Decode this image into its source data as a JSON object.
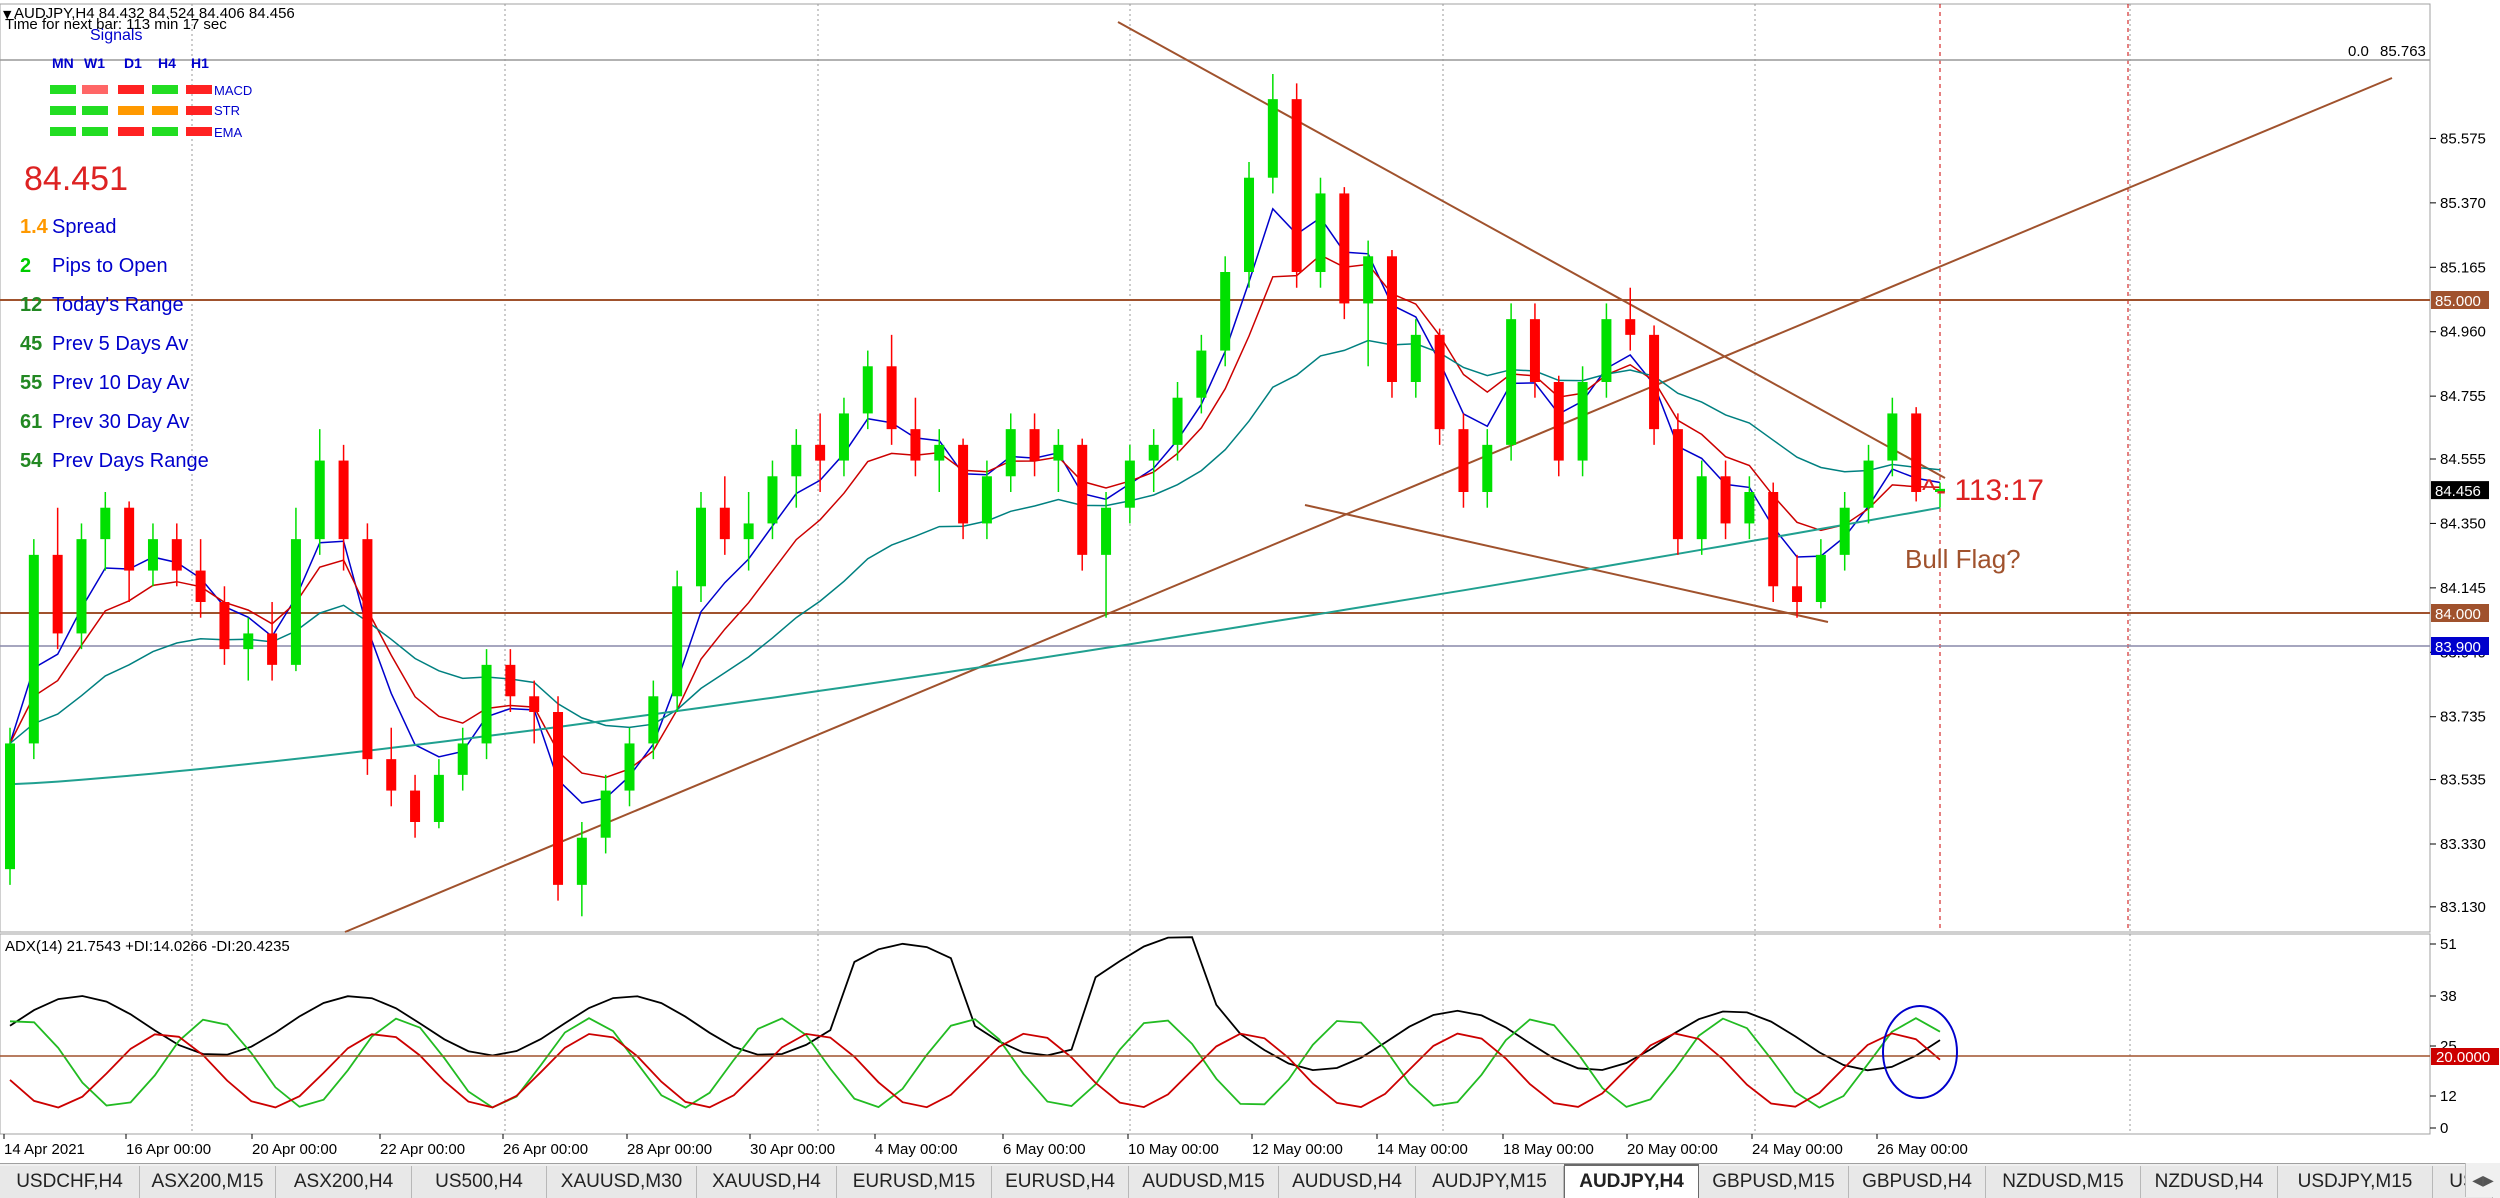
{
  "header": {
    "symbol_line": "AUDJPY,H4  84.432 84.524 84.406 84.456",
    "timer": "Time for next bar: 113 min 17 sec"
  },
  "signals": {
    "title": "Signals",
    "timeframes": [
      "MN",
      "W1",
      "D1",
      "H4",
      "H1"
    ],
    "rows": [
      {
        "label": "MACD",
        "colors": [
          "#22dd22",
          "#ff6666",
          "#ff2222",
          "#22dd22",
          "#ff2222"
        ]
      },
      {
        "label": "STR",
        "colors": [
          "#22dd22",
          "#22dd22",
          "#ff9900",
          "#ff9900",
          "#ff2222"
        ]
      },
      {
        "label": "EMA",
        "colors": [
          "#22dd22",
          "#22dd22",
          "#ff2222",
          "#22dd22",
          "#ff2222"
        ]
      }
    ]
  },
  "info_panel": {
    "price": "84.451",
    "rows": [
      {
        "value": "1.4",
        "label": "Spread",
        "value_color": "#ff9900"
      },
      {
        "value": "2",
        "label": "Pips to Open",
        "value_color": "#00cc00"
      },
      {
        "value": "12",
        "label": "Today's Range",
        "value_color": "#228822"
      },
      {
        "value": "45",
        "label": "Prev 5 Days Av",
        "value_color": "#228822"
      },
      {
        "value": "55",
        "label": "Prev 10 Day Av",
        "value_color": "#228822"
      },
      {
        "value": "61",
        "label": "Prev 30 Day Av",
        "value_color": "#228822"
      },
      {
        "value": "54",
        "label": "Prev Days Range",
        "value_color": "#228822"
      }
    ]
  },
  "price_axis": {
    "ticks": [
      "85.575",
      "85.370",
      "85.165",
      "84.960",
      "84.755",
      "84.555",
      "84.350",
      "84.145",
      "83.940",
      "83.735",
      "83.535",
      "83.330",
      "83.130"
    ],
    "fib_label": "0.0",
    "fib_value": "85.763",
    "level_labels": [
      {
        "text": "85.000",
        "bg": "#a0522d",
        "fg": "#ffffff"
      },
      {
        "text": "84.456",
        "bg": "#000000",
        "fg": "#ffffff"
      },
      {
        "text": "84.000",
        "bg": "#a0522d",
        "fg": "#ffffff"
      },
      {
        "text": "83.900",
        "bg": "#0000cc",
        "fg": "#ffffff"
      }
    ]
  },
  "annotations": {
    "timer_mark": "^- 113:17",
    "pattern": "Bull Flag?"
  },
  "adx": {
    "label": "ADX(14) 21.7543 +DI:14.0266 -DI:20.4235",
    "ticks": [
      "51",
      "38",
      "25",
      "12",
      "0"
    ],
    "level_label": "20.0000"
  },
  "time_axis": {
    "labels": [
      "14 Apr 2021",
      "16 Apr 00:00",
      "20 Apr 00:00",
      "22 Apr 00:00",
      "26 Apr 00:00",
      "28 Apr 00:00",
      "30 Apr 00:00",
      "4 May 00:00",
      "6 May 00:00",
      "10 May 00:00",
      "12 May 00:00",
      "14 May 00:00",
      "18 May 00:00",
      "20 May 00:00",
      "24 May 00:00",
      "26 May 00:00"
    ]
  },
  "tabs": [
    {
      "label": "USDCHF,H4",
      "active": false
    },
    {
      "label": "ASX200,M15",
      "active": false
    },
    {
      "label": "ASX200,H4",
      "active": false
    },
    {
      "label": "US500,H4",
      "active": false
    },
    {
      "label": "XAUUSD,M30",
      "active": false
    },
    {
      "label": "XAUUSD,H4",
      "active": false
    },
    {
      "label": "EURUSD,M15",
      "active": false
    },
    {
      "label": "EURUSD,H4",
      "active": false
    },
    {
      "label": "AUDUSD,M15",
      "active": false
    },
    {
      "label": "AUDUSD,H4",
      "active": false
    },
    {
      "label": "AUDJPY,M15",
      "active": false
    },
    {
      "label": "AUDJPY,H4",
      "active": true
    },
    {
      "label": "GBPUSD,M15",
      "active": false
    },
    {
      "label": "GBPUSD,H4",
      "active": false
    },
    {
      "label": "NZDUSD,M15",
      "active": false
    },
    {
      "label": "NZDUSD,H4",
      "active": false
    },
    {
      "label": "USDJPY,M15",
      "active": false
    },
    {
      "label": "US",
      "active": false
    }
  ],
  "colors": {
    "bull": "#00e000",
    "bear": "#ff0000",
    "level": "#a0522d",
    "trend": "#a0522d",
    "blue_level": "#8888aa",
    "ma_fast": "#0000cc",
    "ma_mid": "#cc0000",
    "ma_slow": "#008080",
    "ma_long": "#20a090",
    "adx_main": "#000000",
    "adx_plus": "#22bb22",
    "adx_minus": "#cc0000"
  },
  "chart_data": {
    "type": "candlestick",
    "y_range": [
      83.05,
      85.85
    ],
    "candles": [
      [
        83.25,
        83.7,
        83.2,
        83.65
      ],
      [
        83.65,
        84.3,
        83.6,
        84.25
      ],
      [
        84.25,
        84.4,
        83.95,
        84.0
      ],
      [
        84.0,
        84.35,
        83.95,
        84.3
      ],
      [
        84.3,
        84.45,
        84.2,
        84.4
      ],
      [
        84.4,
        84.42,
        84.1,
        84.2
      ],
      [
        84.2,
        84.35,
        84.15,
        84.3
      ],
      [
        84.3,
        84.35,
        84.15,
        84.2
      ],
      [
        84.2,
        84.3,
        84.05,
        84.1
      ],
      [
        84.1,
        84.15,
        83.9,
        83.95
      ],
      [
        83.95,
        84.05,
        83.85,
        84.0
      ],
      [
        84.0,
        84.1,
        83.85,
        83.9
      ],
      [
        83.9,
        84.4,
        83.88,
        84.3
      ],
      [
        84.3,
        84.65,
        84.25,
        84.55
      ],
      [
        84.55,
        84.6,
        84.2,
        84.3
      ],
      [
        84.3,
        84.35,
        83.55,
        83.6
      ],
      [
        83.6,
        83.7,
        83.45,
        83.5
      ],
      [
        83.5,
        83.55,
        83.35,
        83.4
      ],
      [
        83.4,
        83.6,
        83.38,
        83.55
      ],
      [
        83.55,
        83.7,
        83.5,
        83.65
      ],
      [
        83.65,
        83.95,
        83.6,
        83.9
      ],
      [
        83.9,
        83.95,
        83.75,
        83.8
      ],
      [
        83.8,
        83.85,
        83.65,
        83.75
      ],
      [
        83.75,
        83.8,
        83.15,
        83.2
      ],
      [
        83.2,
        83.4,
        83.1,
        83.35
      ],
      [
        83.35,
        83.55,
        83.3,
        83.5
      ],
      [
        83.5,
        83.7,
        83.45,
        83.65
      ],
      [
        83.65,
        83.85,
        83.6,
        83.8
      ],
      [
        83.8,
        84.2,
        83.75,
        84.15
      ],
      [
        84.15,
        84.45,
        84.1,
        84.4
      ],
      [
        84.4,
        84.5,
        84.25,
        84.3
      ],
      [
        84.3,
        84.45,
        84.2,
        84.35
      ],
      [
        84.35,
        84.55,
        84.3,
        84.5
      ],
      [
        84.5,
        84.65,
        84.4,
        84.6
      ],
      [
        84.6,
        84.7,
        84.45,
        84.55
      ],
      [
        84.55,
        84.75,
        84.5,
        84.7
      ],
      [
        84.7,
        84.9,
        84.65,
        84.85
      ],
      [
        84.85,
        84.95,
        84.6,
        84.65
      ],
      [
        84.65,
        84.75,
        84.5,
        84.55
      ],
      [
        84.55,
        84.65,
        84.45,
        84.6
      ],
      [
        84.6,
        84.62,
        84.3,
        84.35
      ],
      [
        84.35,
        84.55,
        84.3,
        84.5
      ],
      [
        84.5,
        84.7,
        84.45,
        84.65
      ],
      [
        84.65,
        84.7,
        84.5,
        84.55
      ],
      [
        84.55,
        84.65,
        84.45,
        84.6
      ],
      [
        84.6,
        84.62,
        84.2,
        84.25
      ],
      [
        84.25,
        84.45,
        84.05,
        84.4
      ],
      [
        84.4,
        84.6,
        84.35,
        84.55
      ],
      [
        84.55,
        84.65,
        84.45,
        84.6
      ],
      [
        84.6,
        84.8,
        84.55,
        84.75
      ],
      [
        84.75,
        84.95,
        84.7,
        84.9
      ],
      [
        84.9,
        85.2,
        84.85,
        85.15
      ],
      [
        85.15,
        85.5,
        85.1,
        85.45
      ],
      [
        85.45,
        85.78,
        85.4,
        85.7
      ],
      [
        85.7,
        85.75,
        85.1,
        85.15
      ],
      [
        85.15,
        85.45,
        85.1,
        85.4
      ],
      [
        85.4,
        85.42,
        85.0,
        85.05
      ],
      [
        85.05,
        85.25,
        84.85,
        85.2
      ],
      [
        85.2,
        85.22,
        84.75,
        84.8
      ],
      [
        84.8,
        85.0,
        84.75,
        84.95
      ],
      [
        84.95,
        84.97,
        84.6,
        84.65
      ],
      [
        84.65,
        84.7,
        84.4,
        84.45
      ],
      [
        84.45,
        84.65,
        84.4,
        84.6
      ],
      [
        84.6,
        85.05,
        84.55,
        85.0
      ],
      [
        85.0,
        85.05,
        84.75,
        84.8
      ],
      [
        84.8,
        84.82,
        84.5,
        84.55
      ],
      [
        84.55,
        84.85,
        84.5,
        84.8
      ],
      [
        84.8,
        85.05,
        84.75,
        85.0
      ],
      [
        85.0,
        85.1,
        84.9,
        84.95
      ],
      [
        84.95,
        84.98,
        84.6,
        84.65
      ],
      [
        84.65,
        84.7,
        84.25,
        84.3
      ],
      [
        84.3,
        84.55,
        84.25,
        84.5
      ],
      [
        84.5,
        84.55,
        84.3,
        84.35
      ],
      [
        84.35,
        84.5,
        84.3,
        84.45
      ],
      [
        84.45,
        84.48,
        84.1,
        84.15
      ],
      [
        84.15,
        84.25,
        84.05,
        84.1
      ],
      [
        84.1,
        84.3,
        84.08,
        84.25
      ],
      [
        84.25,
        84.45,
        84.2,
        84.4
      ],
      [
        84.4,
        84.6,
        84.35,
        84.55
      ],
      [
        84.55,
        84.75,
        84.5,
        84.7
      ],
      [
        84.7,
        84.72,
        84.42,
        84.45
      ],
      [
        84.45,
        84.48,
        84.4,
        84.46
      ]
    ],
    "adx_scale": [
      0,
      51
    ]
  }
}
